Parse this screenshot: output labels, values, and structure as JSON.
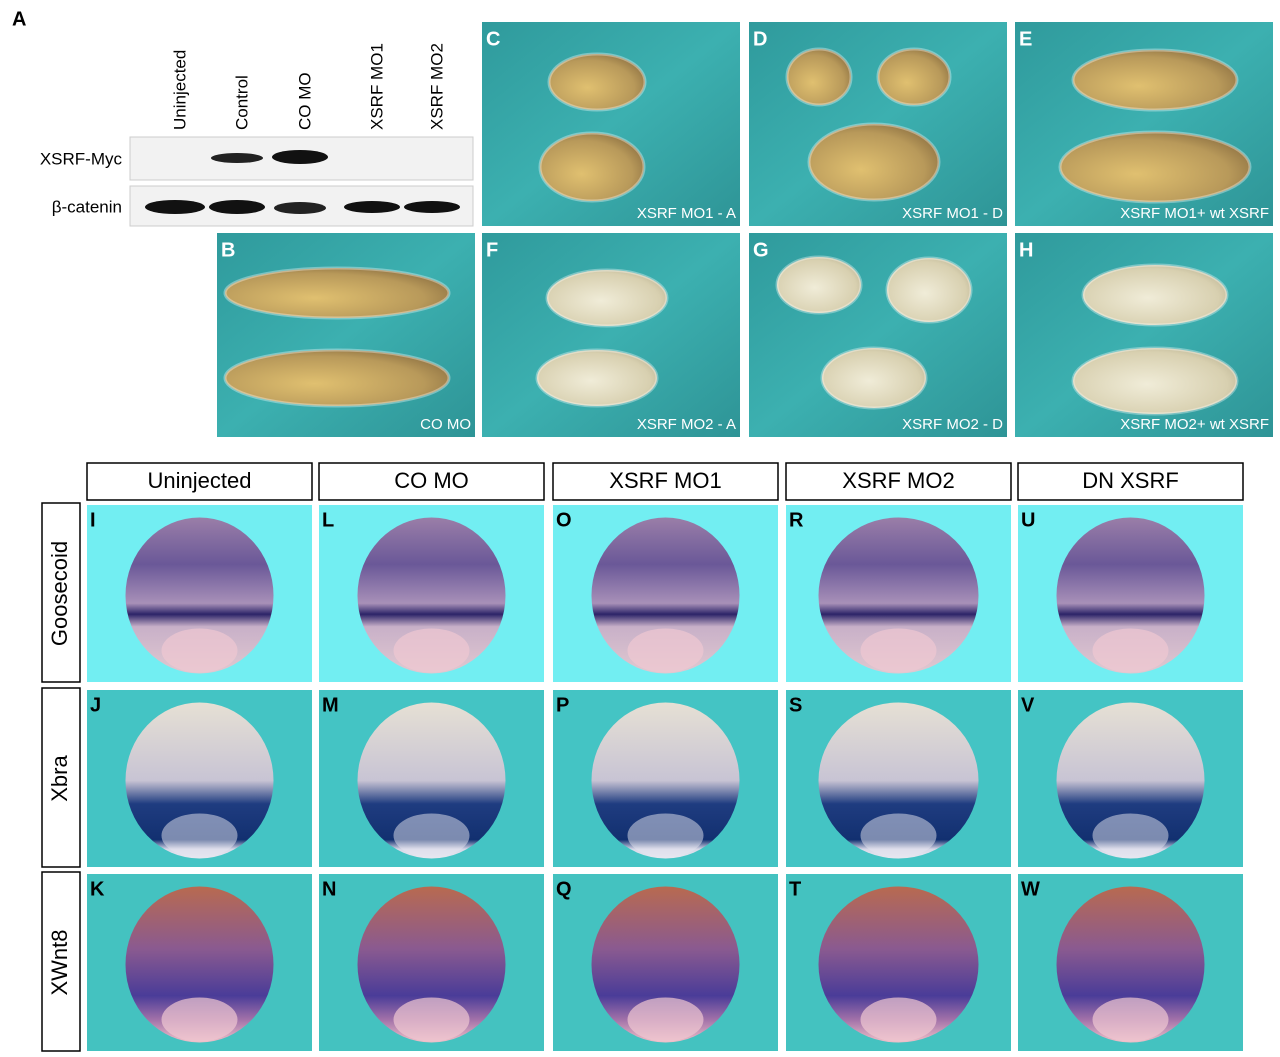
{
  "panel_a": {
    "letter": "A",
    "lanes": [
      "Uninjected",
      "Control",
      "CO MO",
      "XSRF MO1",
      "XSRF MO2"
    ],
    "blots": [
      "XSRF-Myc",
      "β-catenin"
    ]
  },
  "embryo_panels": [
    {
      "letter": "C",
      "caption": "XSRF MO1 - A"
    },
    {
      "letter": "D",
      "caption": "XSRF MO1 - D"
    },
    {
      "letter": "E",
      "caption": "XSRF MO1+ wt XSRF"
    },
    {
      "letter": "B",
      "caption": "CO MO"
    },
    {
      "letter": "F",
      "caption": "XSRF MO2 - A"
    },
    {
      "letter": "G",
      "caption": "XSRF MO2 - D"
    },
    {
      "letter": "H",
      "caption": "XSRF MO2+ wt XSRF"
    }
  ],
  "in_situ": {
    "columns": [
      "Uninjected",
      "CO MO",
      "XSRF MO1",
      "XSRF MO2",
      "DN XSRF"
    ],
    "rows": [
      {
        "label": "Goosecoid",
        "letters": [
          "I",
          "L",
          "O",
          "R",
          "U"
        ]
      },
      {
        "label": "Xbra",
        "letters": [
          "J",
          "M",
          "P",
          "S",
          "V"
        ]
      },
      {
        "label": "XWnt8",
        "letters": [
          "K",
          "N",
          "Q",
          "T",
          "W"
        ]
      }
    ]
  }
}
